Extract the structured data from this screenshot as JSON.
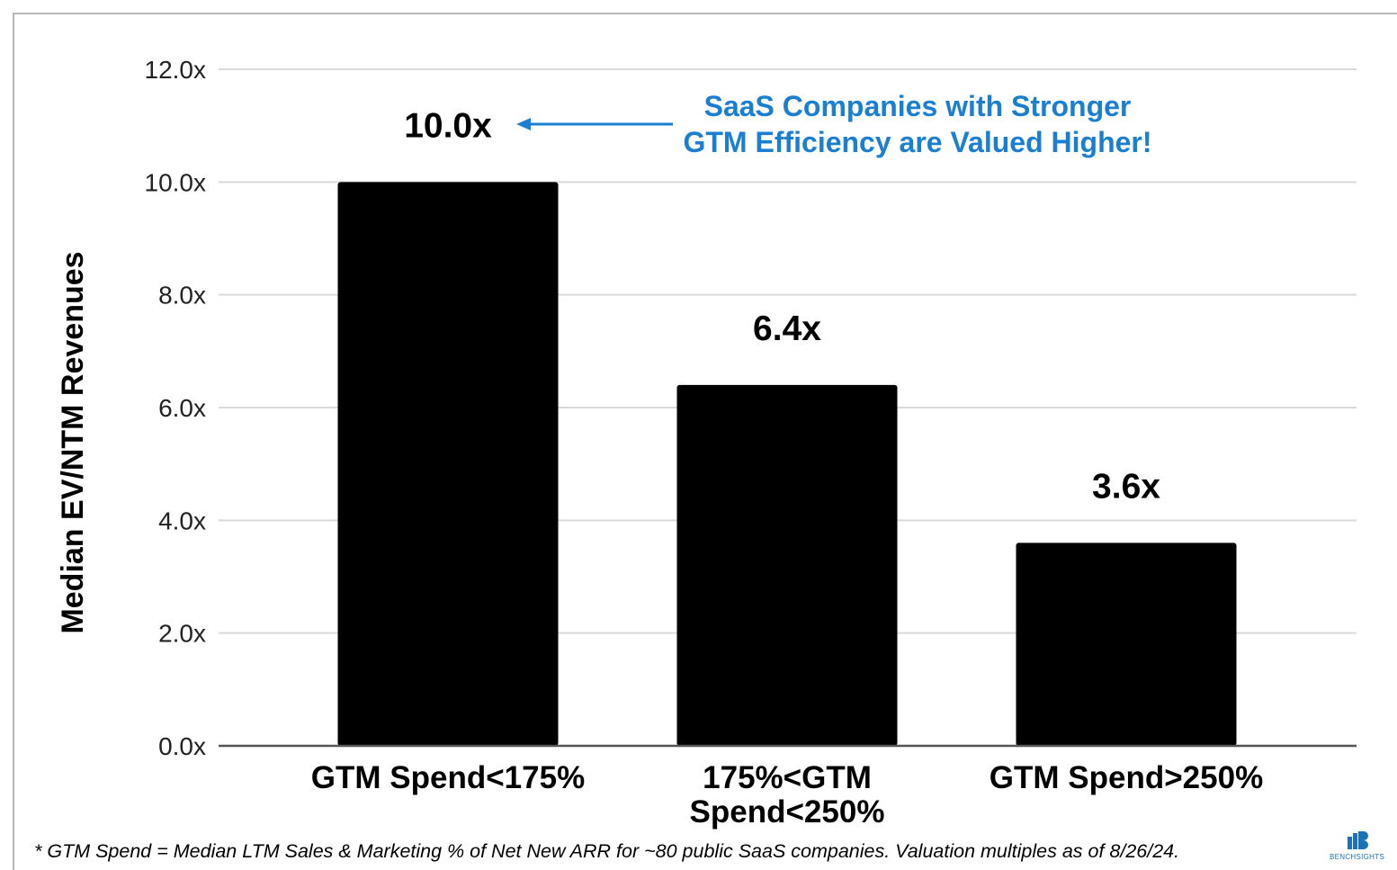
{
  "chart_data": {
    "type": "bar",
    "title": "",
    "xlabel": "",
    "ylabel": "Median EV/NTM Revenues",
    "ylim": [
      0,
      12
    ],
    "yticks": [
      0,
      2,
      4,
      6,
      8,
      10,
      12
    ],
    "ytick_labels": [
      "0.0x",
      "2.0x",
      "4.0x",
      "6.0x",
      "8.0x",
      "10.0x",
      "12.0x"
    ],
    "categories": [
      [
        "GTM Spend<175%"
      ],
      [
        "175%<GTM",
        "Spend<250%"
      ],
      [
        "GTM Spend>250%"
      ]
    ],
    "values": [
      10.0,
      6.4,
      3.6
    ],
    "data_labels": [
      "10.0x",
      "6.4x",
      "3.6x"
    ],
    "grid": true,
    "bar_color": "#000000",
    "grid_color": "#d9d9d9",
    "annotation": {
      "lines": [
        "SaaS Companies with Stronger",
        "GTM Efficiency are Valued Higher!"
      ],
      "color": "#1a7fd1",
      "points_to_category": 0
    }
  },
  "footnote": "* GTM Spend = Median LTM Sales & Marketing % of Net New ARR for ~80 public SaaS companies.  Valuation multiples as of 8/26/24.",
  "logo": {
    "icon": "bar-chart-logo-icon",
    "text": "BENCHSIGHTS",
    "color": "#1a73b8"
  }
}
